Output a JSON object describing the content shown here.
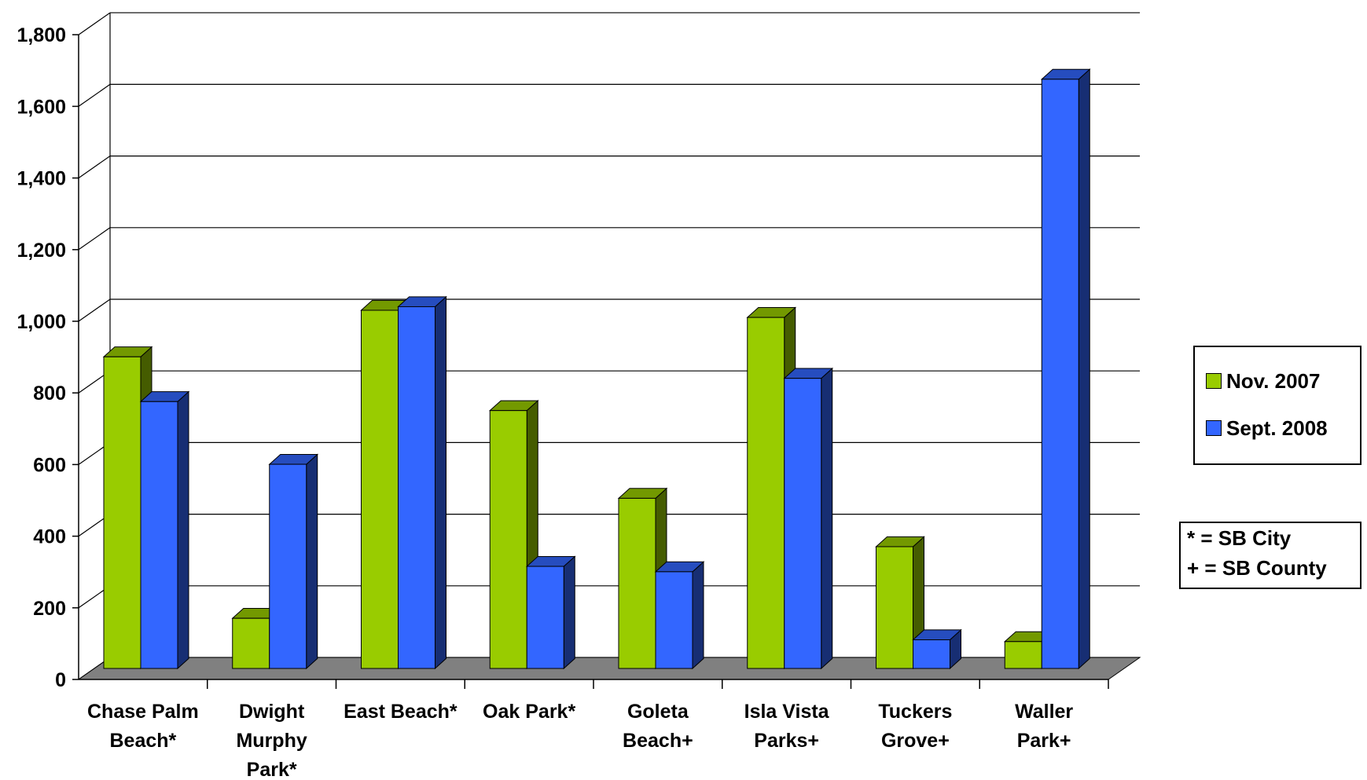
{
  "chart_data": {
    "type": "bar",
    "title": "",
    "xlabel": "",
    "ylabel": "",
    "ylim": [
      0,
      1800
    ],
    "yticks": [
      "0",
      "200",
      "400",
      "600",
      "800",
      "1,000",
      "1,200",
      "1,400",
      "1,600",
      "1,800"
    ],
    "grid": true,
    "legend_position": "right",
    "categories": [
      [
        "Chase Palm",
        "Beach*"
      ],
      [
        "Dwight",
        "Murphy",
        "Park*"
      ],
      [
        "East Beach*"
      ],
      [
        "Oak Park*"
      ],
      [
        "Goleta",
        "Beach+"
      ],
      [
        "Isla Vista",
        "Parks+"
      ],
      [
        "Tuckers",
        "Grove+"
      ],
      [
        "Waller",
        "Park+"
      ]
    ],
    "series": [
      {
        "name": "Nov. 2007",
        "color": "#99cc00",
        "values": [
          870,
          140,
          1000,
          720,
          475,
          980,
          340,
          75
        ]
      },
      {
        "name": "Sept. 2008",
        "color": "#3366ff",
        "values": [
          745,
          570,
          1010,
          285,
          270,
          810,
          80,
          1645
        ]
      }
    ],
    "notes": [
      "* =  SB City",
      "+ = SB County"
    ]
  }
}
